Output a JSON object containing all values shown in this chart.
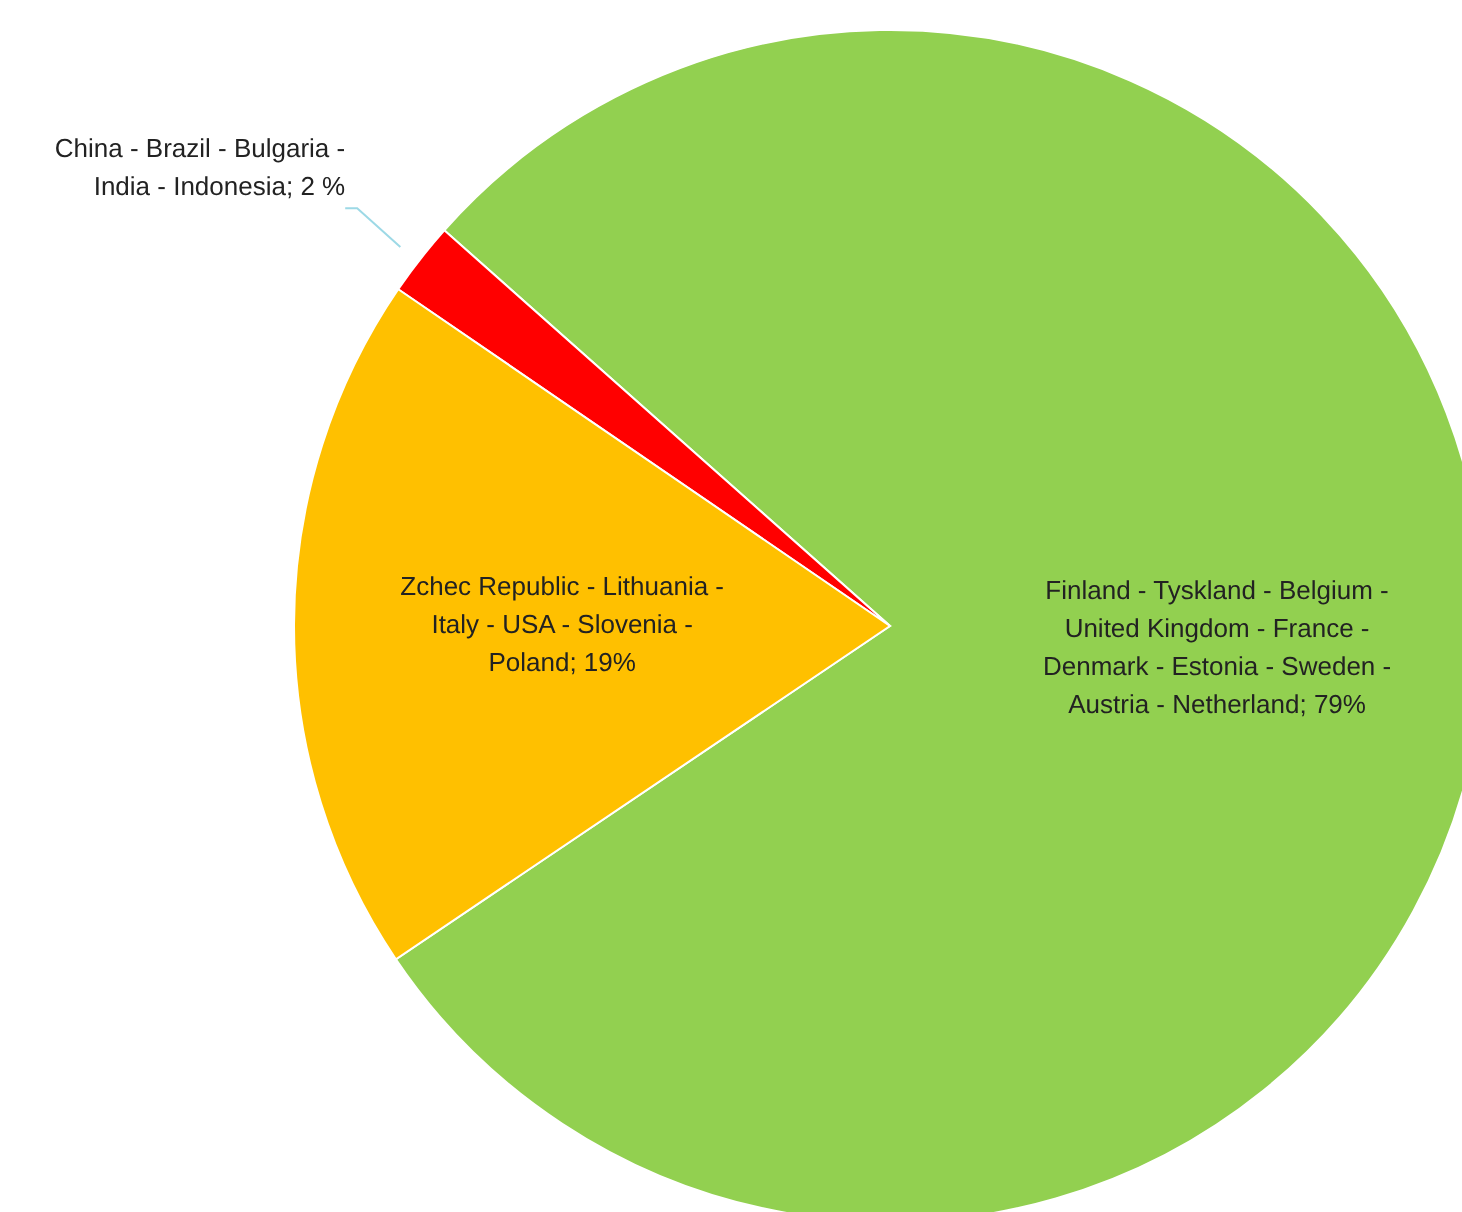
{
  "chart_data": {
    "type": "pie",
    "categories": [
      "Finland - Tyskland - Belgium - United Kingdom - France - Denmark - Estonia - Sweden - Austria - Netherland",
      "China - Brazil - Bulgaria - India - Indonesia",
      "Zchec Republic - Lithuania - Italy - USA - Slovenia - Poland"
    ],
    "values": [
      79,
      2,
      19
    ],
    "value_labels": [
      "79%",
      "2 %",
      "19%"
    ],
    "colors": [
      "#92d050",
      "#ff0000",
      "#ffc000"
    ],
    "legend": false
  }
}
